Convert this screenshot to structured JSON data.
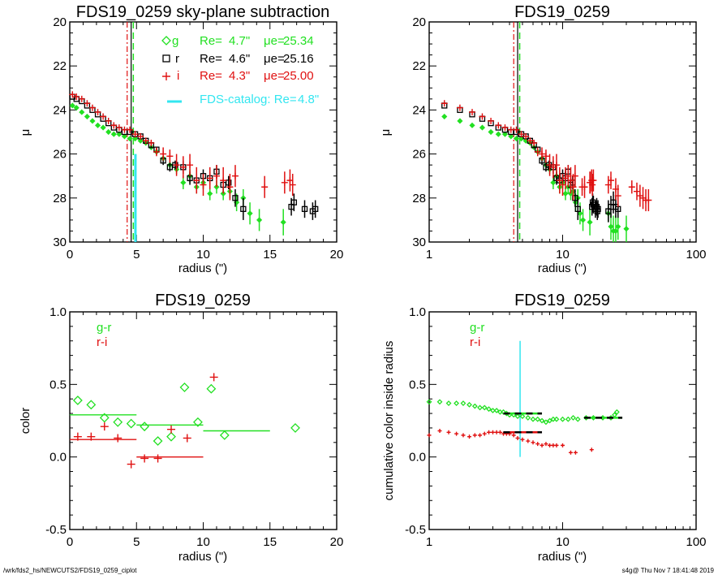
{
  "footer": {
    "path": "/wrk/fds2_hs/NEWCUTS2/FDS19_0259_ciplot",
    "stamp": "s4g@  Thu Nov  7 18:41:48 2019"
  },
  "colors": {
    "g": "#22e022",
    "r": "#000000",
    "i": "#e01010",
    "catalog": "#33e6f0",
    "gr": "#22e022",
    "ri": "#e01010"
  },
  "chart_data": [
    {
      "id": "profile_linear",
      "type": "scatter",
      "title": "FDS19_0259 sky-plane subtraction",
      "xlabel": "radius (\")",
      "ylabel": "μ",
      "xlim": [
        0,
        20
      ],
      "ylim": [
        30,
        20
      ],
      "xticks": [
        "0",
        "5",
        "10",
        "15",
        "20"
      ],
      "yticks": [
        "20",
        "22",
        "24",
        "26",
        "28",
        "30"
      ],
      "legend": [
        {
          "band": "g",
          "symbol": "diamond",
          "re_label": "Re=",
          "re": "4.7\"",
          "mu_label": "μe=",
          "mu": "25.34"
        },
        {
          "band": "r",
          "symbol": "square",
          "re_label": "Re=",
          "re": "4.6\"",
          "mu_label": "μe=",
          "mu": "25.16"
        },
        {
          "band": "i",
          "symbol": "plus",
          "re_label": "Re=",
          "re": "4.3\"",
          "mu_label": "μe=",
          "mu": "25.00"
        }
      ],
      "catalog_label": "FDS-catalog: Re=",
      "catalog_re": "4.8\"",
      "vlines": {
        "i": 4.3,
        "r": 4.6,
        "g": 4.7,
        "catalog": 4.8
      },
      "series": [
        {
          "name": "g",
          "x": [
            0.2,
            0.5,
            0.9,
            1.3,
            1.7,
            2.1,
            2.5,
            2.9,
            3.3,
            3.7,
            4.1,
            4.5,
            4.9,
            5.3,
            5.7,
            6.1,
            6.5,
            7.0,
            7.5,
            8.0,
            8.5,
            9.0,
            9.5,
            10.0,
            10.5,
            11.0,
            11.5,
            12.0,
            12.5,
            13.0,
            13.5,
            14.2,
            16.0
          ],
          "y": [
            23.8,
            23.9,
            24.1,
            24.3,
            24.5,
            24.7,
            24.8,
            25.0,
            25.1,
            25.1,
            25.2,
            25.3,
            25.3,
            25.4,
            25.5,
            25.7,
            25.9,
            26.2,
            26.5,
            26.7,
            27.3,
            27.0,
            27.5,
            27.3,
            27.8,
            27.5,
            27.8,
            27.7,
            28.2,
            28.0,
            28.7,
            29.0,
            29.1
          ],
          "err": [
            0,
            0,
            0,
            0,
            0,
            0,
            0,
            0,
            0,
            0,
            0,
            0,
            0,
            0,
            0,
            0,
            0,
            0.1,
            0.2,
            0.2,
            0.3,
            0.3,
            0.3,
            0.3,
            0.3,
            0.3,
            0.3,
            0.3,
            0.4,
            0.4,
            0.5,
            0.5,
            0.6
          ]
        },
        {
          "name": "r",
          "x": [
            0.2,
            0.5,
            0.9,
            1.3,
            1.7,
            2.1,
            2.5,
            2.9,
            3.3,
            3.7,
            4.1,
            4.5,
            4.9,
            5.3,
            5.7,
            6.1,
            6.5,
            7.0,
            7.5,
            7.9,
            8.5,
            9.0,
            9.5,
            10.0,
            10.5,
            11.0,
            11.5,
            11.9,
            12.4,
            13.0,
            16.6,
            16.8,
            17.6,
            18.2,
            18.4
          ],
          "y": [
            23.4,
            23.5,
            23.6,
            23.8,
            24.0,
            24.2,
            24.4,
            24.6,
            24.8,
            24.9,
            25.0,
            25.0,
            25.1,
            25.2,
            25.4,
            25.6,
            25.8,
            26.3,
            26.6,
            26.5,
            26.6,
            27.1,
            27.2,
            27.0,
            27.1,
            26.8,
            27.4,
            27.3,
            28.0,
            28.5,
            28.4,
            28.2,
            28.5,
            28.6,
            28.5
          ],
          "err": [
            0,
            0,
            0,
            0,
            0,
            0,
            0,
            0,
            0,
            0,
            0,
            0,
            0,
            0,
            0.1,
            0.1,
            0.1,
            0.2,
            0.2,
            0.2,
            0.3,
            0.3,
            0.3,
            0.3,
            0.3,
            0.3,
            0.3,
            0.3,
            0.4,
            0.5,
            0.4,
            0.4,
            0.4,
            0.4,
            0.4
          ]
        },
        {
          "name": "i",
          "x": [
            0.2,
            0.5,
            0.9,
            1.3,
            1.7,
            2.1,
            2.5,
            2.9,
            3.3,
            3.7,
            4.1,
            4.5,
            4.9,
            5.3,
            5.7,
            6.1,
            6.5,
            7.0,
            7.5,
            8.0,
            8.5,
            9.0,
            9.5,
            10.0,
            10.5,
            11.0,
            11.5,
            12.0,
            12.4,
            14.6,
            16.1,
            16.5,
            16.7
          ],
          "y": [
            23.3,
            23.4,
            23.5,
            23.7,
            23.9,
            24.1,
            24.3,
            24.5,
            24.7,
            24.8,
            24.9,
            24.9,
            25.1,
            25.2,
            25.4,
            25.5,
            25.9,
            26.0,
            26.1,
            26.5,
            26.6,
            26.5,
            27.2,
            27.4,
            27.1,
            27.0,
            27.2,
            27.5,
            27.0,
            27.5,
            27.3,
            27.2,
            27.4
          ],
          "err": [
            0,
            0,
            0,
            0,
            0,
            0,
            0,
            0,
            0,
            0,
            0,
            0,
            0,
            0,
            0.1,
            0.1,
            0.2,
            0.3,
            0.3,
            0.5,
            0.5,
            0.5,
            0.6,
            0.5,
            0.5,
            0.5,
            0.6,
            0.6,
            0.5,
            0.5,
            0.5,
            0.5,
            0.5
          ]
        }
      ]
    },
    {
      "id": "profile_log",
      "type": "scatter",
      "title": "FDS19_0259",
      "xlabel": "radius (\")",
      "ylabel": "μ",
      "xscale": "log",
      "xlim": [
        1,
        100
      ],
      "ylim": [
        30,
        20
      ],
      "xticks": [
        "1",
        "10",
        "100"
      ],
      "yticks": [
        "20",
        "22",
        "24",
        "26",
        "28",
        "30"
      ],
      "vlines": {
        "i": 4.3,
        "r": 4.6,
        "g": 4.7
      }
    },
    {
      "id": "color_profile",
      "type": "scatter",
      "title": "FDS19_0259",
      "xlabel": "radius (\")",
      "ylabel": "color",
      "xlim": [
        0,
        20
      ],
      "ylim": [
        -0.5,
        1.0
      ],
      "xticks": [
        "0",
        "5",
        "10",
        "15",
        "20"
      ],
      "yticks": [
        "-0.5",
        "0.0",
        "0.5",
        "1.0"
      ],
      "legend": [
        {
          "name": "g-r"
        },
        {
          "name": "r-i"
        }
      ],
      "series": [
        {
          "name": "g-r",
          "x": [
            0.6,
            1.6,
            2.6,
            3.6,
            4.6,
            5.6,
            6.6,
            7.6,
            8.6,
            9.6,
            10.6,
            11.6,
            16.9
          ],
          "y": [
            0.39,
            0.36,
            0.27,
            0.24,
            0.23,
            0.21,
            0.11,
            0.14,
            0.48,
            0.24,
            0.47,
            0.15,
            0.2
          ]
        },
        {
          "name": "r-i",
          "x": [
            0.6,
            1.6,
            2.6,
            3.6,
            4.6,
            5.6,
            6.6,
            7.6,
            8.8,
            10.8
          ],
          "y": [
            0.14,
            0.14,
            0.21,
            0.13,
            -0.05,
            -0.01,
            -0.01,
            0.19,
            0.13,
            0.55
          ]
        }
      ],
      "segments": [
        {
          "name": "g-r",
          "x0": 0,
          "x1": 5,
          "y": 0.29
        },
        {
          "name": "g-r",
          "x0": 5,
          "x1": 10,
          "y": 0.22
        },
        {
          "name": "g-r",
          "x0": 10,
          "x1": 15,
          "y": 0.18
        },
        {
          "name": "r-i",
          "x0": 0,
          "x1": 5,
          "y": 0.12
        },
        {
          "name": "r-i",
          "x0": 5,
          "x1": 10,
          "y": 0.0
        }
      ]
    },
    {
      "id": "cumulative_color",
      "type": "scatter",
      "title": "FDS19_0259",
      "xlabel": "radius (\")",
      "ylabel": "cumulative color inside radius",
      "xscale": "log",
      "xlim": [
        1,
        100
      ],
      "ylim": [
        -0.5,
        1.0
      ],
      "xticks": [
        "1",
        "10",
        "100"
      ],
      "yticks": [
        "-0.5",
        "0.0",
        "0.5",
        "1.0"
      ],
      "legend": [
        {
          "name": "g-r"
        },
        {
          "name": "r-i"
        }
      ],
      "vline": {
        "x": 4.8,
        "y0": 0.0,
        "y1": 0.8
      },
      "series": [
        {
          "name": "g-r",
          "x": [
            1.0,
            1.2,
            1.4,
            1.6,
            1.8,
            2.0,
            2.2,
            2.4,
            2.6,
            2.8,
            3.0,
            3.2,
            3.4,
            3.6,
            3.8,
            4.0,
            4.3,
            4.6,
            5.0,
            5.5,
            6.0,
            6.5,
            7.0,
            7.5,
            8.0,
            8.5,
            9.0,
            10.0,
            11.0,
            12.0,
            13.0,
            15.0,
            17.0,
            20.0,
            23.0,
            24.5,
            25.5
          ],
          "y": [
            0.38,
            0.38,
            0.37,
            0.37,
            0.37,
            0.36,
            0.35,
            0.34,
            0.34,
            0.33,
            0.32,
            0.32,
            0.31,
            0.31,
            0.3,
            0.29,
            0.29,
            0.28,
            0.28,
            0.27,
            0.26,
            0.26,
            0.25,
            0.24,
            0.25,
            0.26,
            0.26,
            0.26,
            0.26,
            0.27,
            0.26,
            0.27,
            0.27,
            0.27,
            0.27,
            0.29,
            0.31
          ]
        },
        {
          "name": "r-i",
          "x": [
            1.0,
            1.2,
            1.4,
            1.6,
            1.8,
            2.0,
            2.2,
            2.4,
            2.6,
            2.8,
            3.0,
            3.2,
            3.4,
            3.6,
            3.8,
            4.0,
            4.3,
            4.6,
            5.0,
            5.5,
            6.0,
            6.5,
            7.0,
            7.5,
            8.0,
            8.5,
            9.0,
            10.0,
            11.5,
            12.5,
            16.5
          ],
          "y": [
            0.15,
            0.18,
            0.17,
            0.16,
            0.15,
            0.14,
            0.15,
            0.15,
            0.16,
            0.17,
            0.17,
            0.17,
            0.17,
            0.16,
            0.16,
            0.16,
            0.15,
            0.13,
            0.12,
            0.11,
            0.1,
            0.09,
            0.08,
            0.09,
            0.08,
            0.08,
            0.08,
            0.08,
            0.03,
            0.03,
            0.05
          ]
        }
      ],
      "segments": [
        {
          "name": "g-r",
          "x0": 3.6,
          "x1": 7.0,
          "y": 0.3
        },
        {
          "name": "g-r",
          "x0": 14.5,
          "x1": 28.0,
          "y": 0.27
        },
        {
          "name": "r-i",
          "x0": 3.6,
          "x1": 7.0,
          "y": 0.17
        }
      ]
    }
  ]
}
